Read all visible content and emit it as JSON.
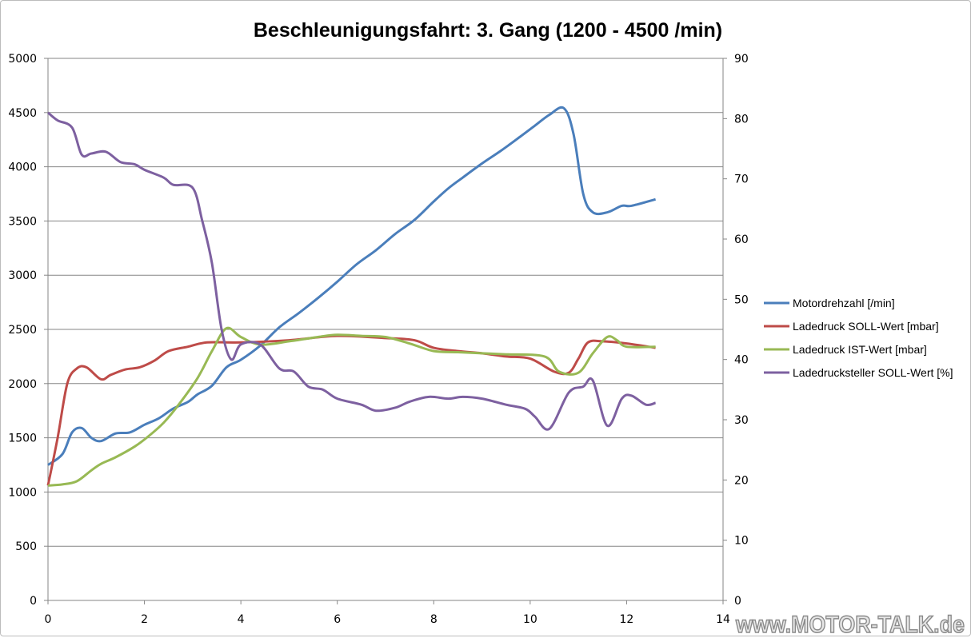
{
  "chart_data": {
    "type": "line",
    "title": "Beschleunigungsfahrt: 3. Gang (1200 - 4500 /min)",
    "xlabel": "",
    "ylabel": "",
    "xlim": [
      0,
      14
    ],
    "ylim": [
      0,
      5000
    ],
    "y2lim": [
      0,
      90
    ],
    "xticks": [
      "0",
      "2",
      "4",
      "6",
      "8",
      "10",
      "12",
      "14"
    ],
    "yticks": [
      "0",
      "500",
      "1000",
      "1500",
      "2000",
      "2500",
      "3000",
      "3500",
      "4000",
      "4500",
      "5000"
    ],
    "y2ticks": [
      "0",
      "10",
      "20",
      "30",
      "40",
      "50",
      "60",
      "70",
      "80",
      "90"
    ],
    "grid": "horizontal",
    "legend_position": "right",
    "series": [
      {
        "name": "Motordrehzahl [/min]",
        "color": "#4a7ebb",
        "axis": "left",
        "x": [
          0,
          0.3,
          0.5,
          0.7,
          0.9,
          1.1,
          1.4,
          1.7,
          2,
          2.3,
          2.6,
          2.9,
          3.1,
          3.4,
          3.7,
          4,
          4.4,
          4.8,
          5.2,
          5.6,
          6,
          6.4,
          6.8,
          7.2,
          7.6,
          8,
          8.3,
          8.6,
          9,
          9.4,
          9.8,
          10.1,
          10.4,
          10.7,
          10.9,
          11.1,
          11.3,
          11.6,
          11.9,
          12.1,
          12.6
        ],
        "y": [
          1250,
          1350,
          1550,
          1590,
          1500,
          1470,
          1540,
          1550,
          1620,
          1680,
          1770,
          1830,
          1900,
          1980,
          2150,
          2220,
          2350,
          2520,
          2650,
          2790,
          2940,
          3100,
          3230,
          3380,
          3510,
          3680,
          3800,
          3900,
          4030,
          4150,
          4280,
          4380,
          4480,
          4540,
          4300,
          3750,
          3580,
          3580,
          3640,
          3640,
          3700
        ]
      },
      {
        "name": "Ladedruck SOLL-Wert [mbar]",
        "color": "#be4b48",
        "axis": "left",
        "x": [
          0,
          0.2,
          0.4,
          0.6,
          0.8,
          1.1,
          1.3,
          1.6,
          1.9,
          2.2,
          2.5,
          2.9,
          3.3,
          4,
          5,
          6,
          7,
          7.6,
          8,
          8.5,
          9,
          9.5,
          10,
          10.5,
          10.8,
          11,
          11.2,
          11.5,
          12,
          12.6
        ],
        "y": [
          1060,
          1500,
          2000,
          2140,
          2150,
          2040,
          2080,
          2130,
          2150,
          2210,
          2300,
          2340,
          2380,
          2380,
          2400,
          2440,
          2420,
          2400,
          2330,
          2300,
          2280,
          2250,
          2230,
          2110,
          2100,
          2230,
          2380,
          2390,
          2370,
          2330
        ]
      },
      {
        "name": "Ladedruck IST-Wert [mbar]",
        "color": "#98b954",
        "axis": "left",
        "x": [
          0,
          0.3,
          0.6,
          0.9,
          1.1,
          1.4,
          1.8,
          2.1,
          2.4,
          2.7,
          3.1,
          3.4,
          3.7,
          4,
          4.4,
          5,
          5.6,
          6,
          6.5,
          7,
          7.5,
          8,
          8.5,
          9,
          9.5,
          10.3,
          10.6,
          11,
          11.3,
          11.6,
          11.8,
          12,
          12.6
        ],
        "y": [
          1060,
          1070,
          1100,
          1200,
          1260,
          1320,
          1420,
          1520,
          1640,
          1800,
          2050,
          2300,
          2510,
          2430,
          2360,
          2390,
          2430,
          2450,
          2440,
          2430,
          2370,
          2300,
          2290,
          2280,
          2270,
          2250,
          2110,
          2100,
          2280,
          2430,
          2400,
          2340,
          2340
        ]
      },
      {
        "name": "Ladedrucksteller SOLL-Wert [%]",
        "color": "#7d60a0",
        "axis": "right",
        "x": [
          0,
          0.2,
          0.5,
          0.7,
          0.9,
          1.2,
          1.5,
          1.8,
          2,
          2.4,
          2.6,
          3,
          3.2,
          3.4,
          3.6,
          3.8,
          4,
          4.4,
          4.8,
          5.1,
          5.4,
          5.7,
          6,
          6.5,
          6.8,
          7.2,
          7.5,
          7.9,
          8.3,
          8.6,
          9,
          9.5,
          9.9,
          10.1,
          10.4,
          10.8,
          11.1,
          11.3,
          11.6,
          11.9,
          12.1,
          12.4,
          12.6
        ],
        "y": [
          81,
          79.7,
          78.5,
          74,
          74.2,
          74.5,
          72.8,
          72.4,
          71.5,
          70.2,
          69,
          68.5,
          63,
          56,
          45,
          40,
          42.5,
          42.5,
          38.5,
          38,
          35.5,
          35,
          33.5,
          32.5,
          31.5,
          32,
          33,
          33.8,
          33.5,
          33.8,
          33.5,
          32.5,
          31.8,
          30.5,
          28.5,
          34.5,
          35.5,
          36.5,
          29,
          33.5,
          34,
          32.5,
          32.8
        ]
      }
    ]
  },
  "watermark": "www.MOTOR-TALK.de"
}
